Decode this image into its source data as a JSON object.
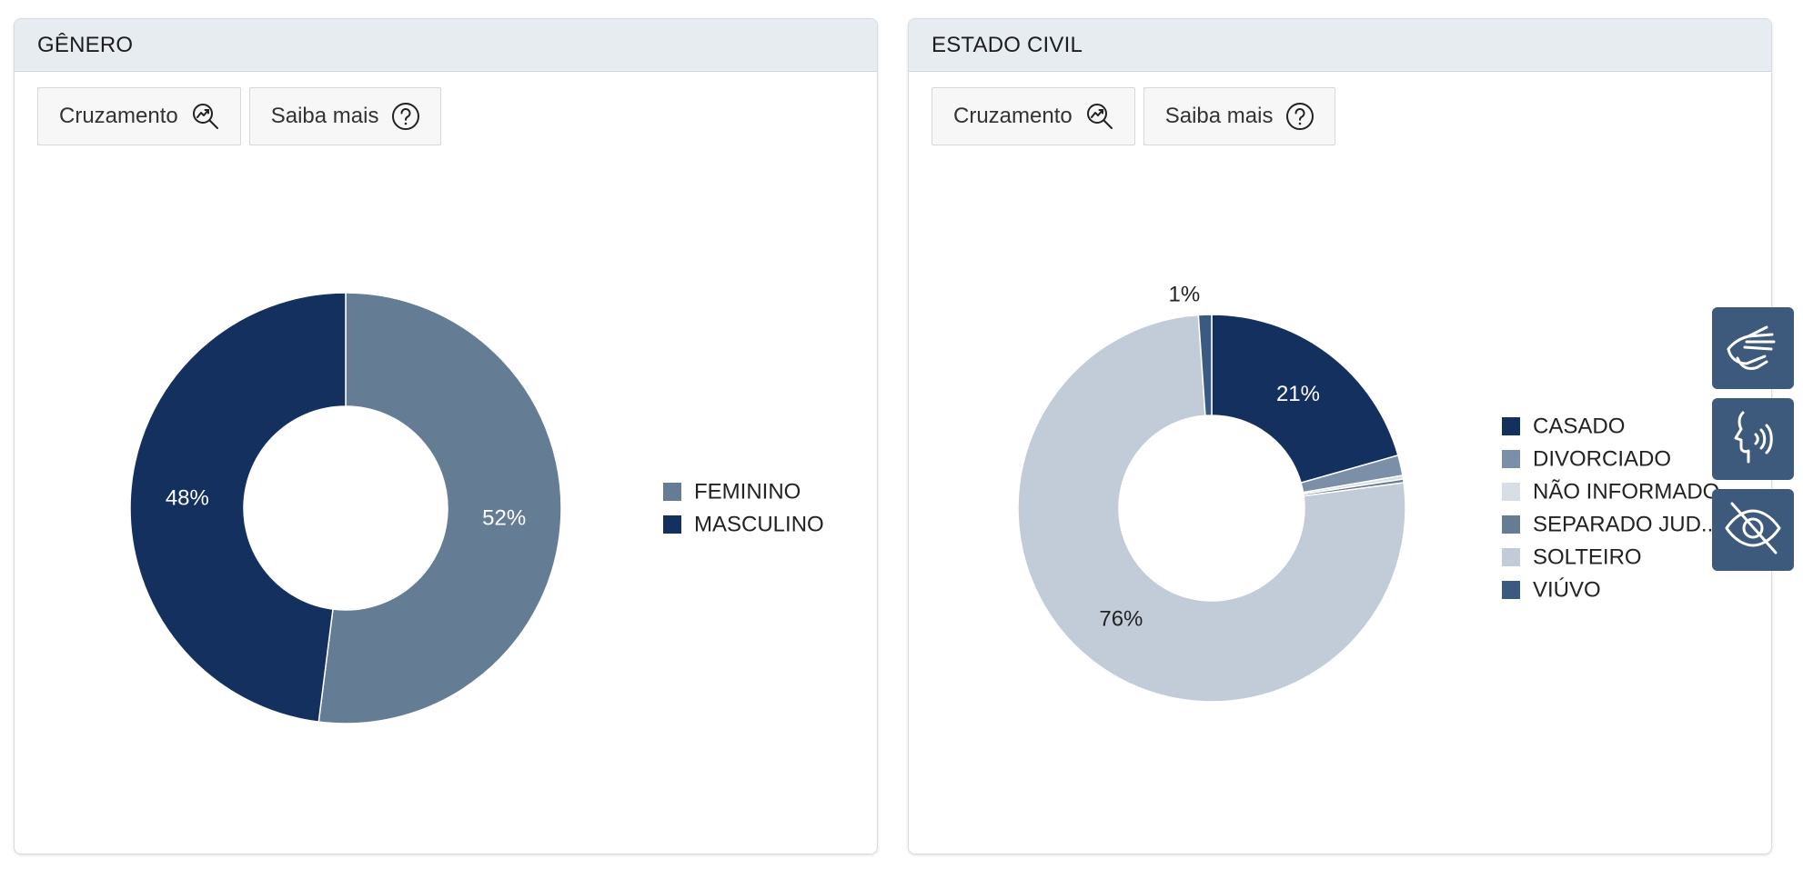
{
  "panels": {
    "genero": {
      "title": "GÊNERO",
      "buttons": {
        "cruzamento": "Cruzamento",
        "saiba_mais": "Saiba mais"
      }
    },
    "estado_civil": {
      "title": "ESTADO CIVIL",
      "buttons": {
        "cruzamento": "Cruzamento",
        "saiba_mais": "Saiba mais"
      }
    }
  },
  "accessibility": {
    "icons": [
      "sign-language-icon",
      "voice-reader-icon",
      "eye-slash-icon"
    ]
  },
  "chart_data": [
    {
      "type": "pie",
      "variant": "donut",
      "title": "GÊNERO",
      "start": "12 o'clock, clockwise",
      "legend_position": "right",
      "slices": [
        {
          "name": "FEMININO",
          "value": 52,
          "label": "52%",
          "color": "#657c95"
        },
        {
          "name": "MASCULINO",
          "value": 48,
          "label": "48%",
          "color": "#13305f"
        }
      ]
    },
    {
      "type": "pie",
      "variant": "donut",
      "title": "ESTADO CIVIL",
      "start": "12 o'clock, clockwise",
      "legend_position": "right",
      "slices": [
        {
          "name": "CASADO",
          "legend": "CASADO",
          "value": 20.6,
          "label": "21%",
          "color": "#13305f"
        },
        {
          "name": "DIVORCIADO",
          "legend": "DIVORCIADO",
          "value": 1.7,
          "label": "",
          "color": "#7b90a8"
        },
        {
          "name": "NÃO INFORMADO",
          "legend": "NÃO INFORMADO",
          "value": 0.3,
          "label": "",
          "color": "#d8dee5"
        },
        {
          "name": "SEPARADO JUDICIALMENTE",
          "legend": "SEPARADO JUD...",
          "value": 0.3,
          "label": "",
          "color": "#657c95"
        },
        {
          "name": "SOLTEIRO",
          "legend": "SOLTEIRO",
          "value": 76.0,
          "label": "76%",
          "color": "#c2ccd8"
        },
        {
          "name": "VIÚVO",
          "legend": "VIÚVO",
          "value": 1.1,
          "label": "1%",
          "color": "#3b5a82"
        }
      ]
    }
  ]
}
